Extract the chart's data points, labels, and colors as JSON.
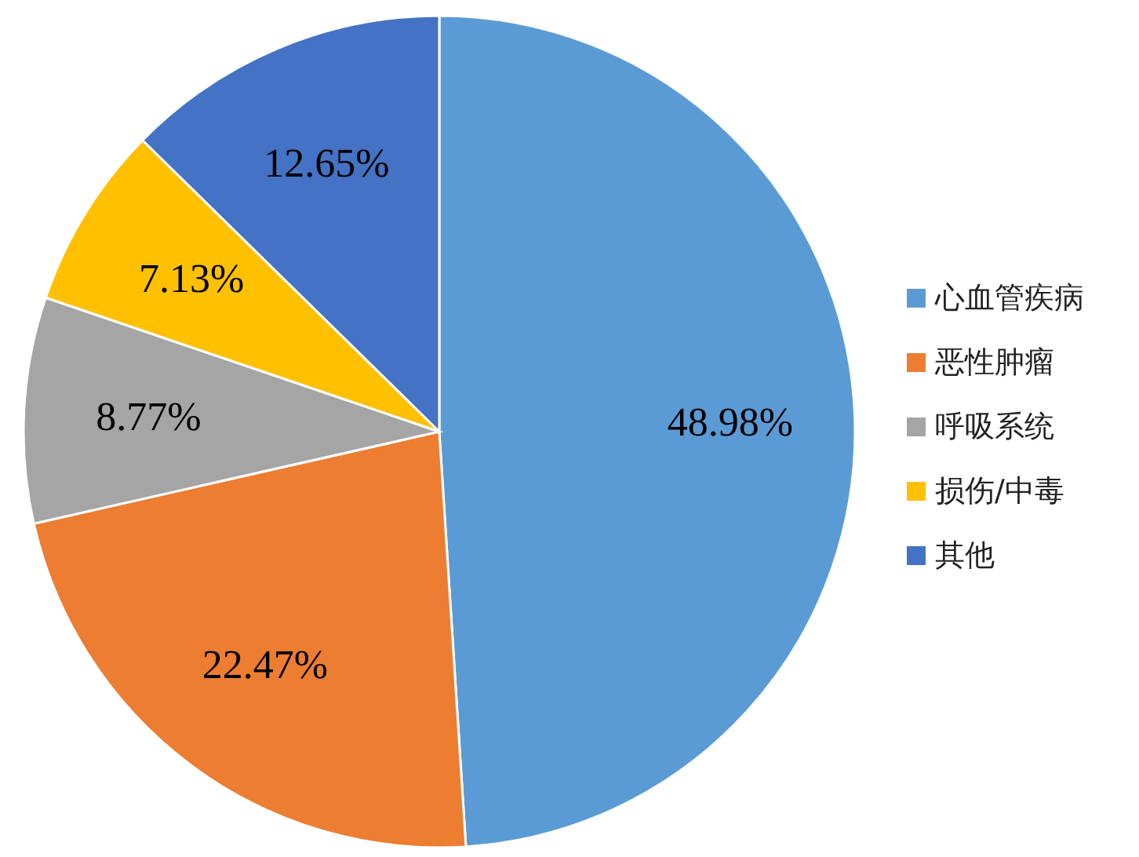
{
  "chart_data": {
    "type": "pie",
    "categories": [
      "心血管疾病",
      "恶性肿瘤",
      "呼吸系统",
      "损伤/中毒",
      "其他"
    ],
    "values": [
      48.98,
      22.47,
      8.77,
      7.13,
      12.65
    ],
    "colors": [
      "#5b9bd5",
      "#ed7d31",
      "#a5a5a5",
      "#ffc000",
      "#4472c4"
    ],
    "value_labels": [
      "48.98%",
      "22.47%",
      "8.77%",
      "7.13%",
      "12.65%"
    ],
    "legend": "right"
  }
}
